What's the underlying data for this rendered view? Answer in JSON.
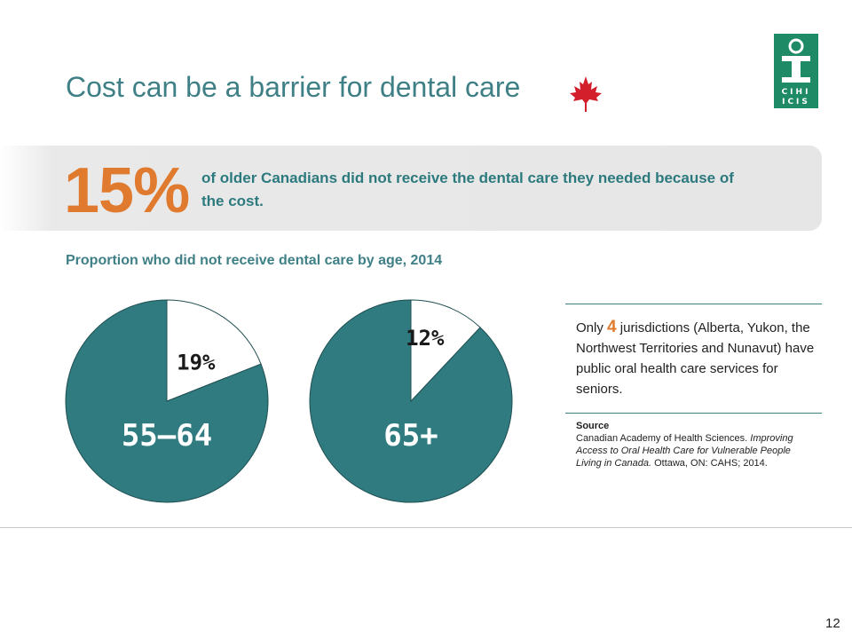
{
  "slide": {
    "title": "Cost can be a barrier for dental care",
    "page_number": "12",
    "logo_text_top": "CIHI",
    "logo_text_bottom": "ICIS"
  },
  "highlight": {
    "value": "15%",
    "text": "of older Canadians did not receive the dental care they needed because of the cost."
  },
  "chart_data": {
    "type": "pie",
    "title": "Proportion who did not receive dental care by age, 2014",
    "pies": [
      {
        "category": "55–64",
        "value": 19,
        "label": "19%"
      },
      {
        "category": "65+",
        "value": 12,
        "label": "12%"
      }
    ],
    "colors": {
      "highlight": "#ffffff",
      "remainder": "#2f7b80",
      "stroke": "#1f4f52"
    }
  },
  "note": {
    "prefix": "Only",
    "number": "4",
    "suffix": "jurisdictions (Alberta, Yukon, the Northwest Territories and Nunavut) have public oral health care services for seniors."
  },
  "source": {
    "heading": "Source",
    "line1": "Canadian Academy of Health Sciences.",
    "italic": "Improving Access to Oral Health Care for Vulnerable People Living in Canada.",
    "line3": "Ottawa, ON: CAHS; 2014."
  },
  "colors": {
    "accent_orange": "#e07a2e",
    "teal": "#3f7f86",
    "logo_green": "#1e8a66"
  }
}
